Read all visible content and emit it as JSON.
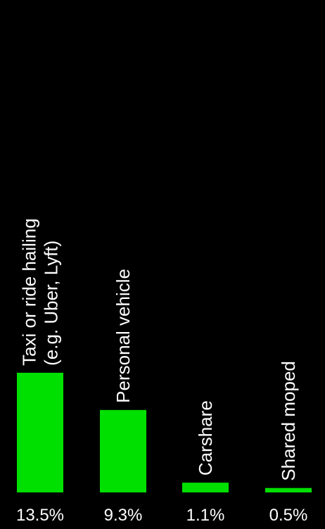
{
  "chart_data": {
    "type": "bar",
    "categories": [
      [
        "Taxi or ride hailing",
        "(e.g. Uber, Lyft)"
      ],
      [
        "Personal vehicle"
      ],
      [
        "Carshare"
      ],
      [
        "Shared moped"
      ]
    ],
    "values": [
      13.5,
      9.3,
      1.1,
      0.5
    ],
    "value_labels": [
      "13.5%",
      "9.3%",
      "1.1%",
      "0.5%"
    ],
    "unit": "%",
    "colors": {
      "background": "#000000",
      "bar": "#00e000",
      "text": "#ffffff"
    }
  }
}
